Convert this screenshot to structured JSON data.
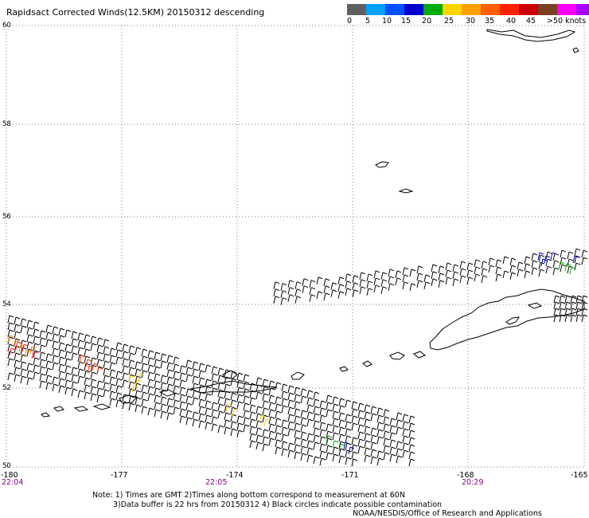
{
  "title": "Rapidsact Corrected Winds(12.5KM) 20150312 descending",
  "legend": {
    "colors": [
      "#606060",
      "#00a0ff",
      "#0050ff",
      "#0000cc",
      "#00aa00",
      "#ffd500",
      "#ffa000",
      "#ff6000",
      "#ff2000",
      "#cc0000",
      "#7a4020",
      "#ff00ff",
      "#aa00ff",
      "#5000a0"
    ],
    "labels": [
      "0",
      "5",
      "10",
      "15",
      "20",
      "25",
      "30",
      "35",
      "40",
      "45",
      ">50 knots"
    ]
  },
  "axes": {
    "lat_labels": [
      "60",
      "58",
      "56",
      "54",
      "52",
      "50"
    ],
    "lon_labels": [
      "-180",
      "-177",
      "-174",
      "-171",
      "-168",
      "-165"
    ]
  },
  "times": [
    "22:04",
    "22:05",
    "20:29"
  ],
  "notes": {
    "line1": "Note: 1) Times are GMT 2)Times along bottom correspond to measurement at 60N",
    "line2": "3)Data buffer is 22 hrs from 20150312 4) Black circles indicate possible contamination",
    "credit": "NOAA/NESDIS/Office of Research and Applications"
  },
  "colors": {
    "grid": "#808080",
    "coast": "#000000",
    "barb": "#000000",
    "time_text": "#880088"
  }
}
